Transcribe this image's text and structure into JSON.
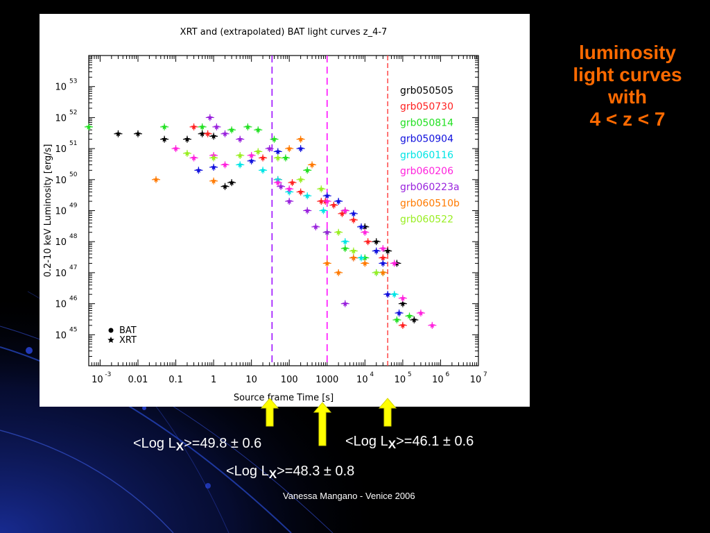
{
  "slide": {
    "side_title_lines": [
      "luminosity",
      "light curves",
      "with",
      "4 < z < 7"
    ],
    "notes": [
      {
        "prefix": "<Log L",
        "sub": "X",
        "suffix": ">=49.8 ± 0.6"
      },
      {
        "prefix": "<Log L",
        "sub": "X",
        "suffix": ">=48.3 ± 0.8"
      },
      {
        "prefix": "<Log L",
        "sub": "X",
        "suffix": ">=46.1 ± 0.6"
      }
    ],
    "footer": "Vanessa Mangano - Venice 2006",
    "colors": {
      "background": "#000000",
      "title": "#ff6a00",
      "arrow": "#ffff00"
    },
    "icons": [
      "up-arrow-icon",
      "up-arrow-icon",
      "up-arrow-icon"
    ]
  },
  "chart_data": {
    "type": "scatter",
    "title": "XRT and (extrapolated) BAT light curves z_4-7",
    "xlabel": "Source frame Time [s]",
    "ylabel": "0.2-10 keV Luminosity [erg/s]",
    "xscale": "log",
    "yscale": "log",
    "xlim": [
      0.0005,
      10000000
    ],
    "ylim": [
      1e+44,
      1e+54
    ],
    "x_ticks": [
      {
        "value": 0.001,
        "mant": "10",
        "exp": "-3"
      },
      {
        "value": 0.01,
        "mant": "0.01",
        "exp": ""
      },
      {
        "value": 0.1,
        "mant": "0.1",
        "exp": ""
      },
      {
        "value": 1,
        "mant": "1",
        "exp": ""
      },
      {
        "value": 10,
        "mant": "10",
        "exp": ""
      },
      {
        "value": 100,
        "mant": "100",
        "exp": ""
      },
      {
        "value": 1000,
        "mant": "1000",
        "exp": ""
      },
      {
        "value": 10000,
        "mant": "10",
        "exp": "4"
      },
      {
        "value": 100000,
        "mant": "10",
        "exp": "5"
      },
      {
        "value": 1000000,
        "mant": "10",
        "exp": "6"
      },
      {
        "value": 10000000,
        "mant": "10",
        "exp": "7"
      }
    ],
    "y_ticks": [
      {
        "value": 1e+45,
        "mant": "10",
        "exp": "45"
      },
      {
        "value": 1e+46,
        "mant": "10",
        "exp": "46"
      },
      {
        "value": 1e+47,
        "mant": "10",
        "exp": "47"
      },
      {
        "value": 1e+48,
        "mant": "10",
        "exp": "48"
      },
      {
        "value": 1e+49,
        "mant": "10",
        "exp": "49"
      },
      {
        "value": 1e+50,
        "mant": "10",
        "exp": "50"
      },
      {
        "value": 1e+51,
        "mant": "10",
        "exp": "51"
      },
      {
        "value": 1e+52,
        "mant": "10",
        "exp": "52"
      },
      {
        "value": 1e+53,
        "mant": "10",
        "exp": "53"
      }
    ],
    "vlines": [
      {
        "x": 35,
        "color": "#9900ff",
        "dash": "dashed"
      },
      {
        "x": 1000,
        "color": "#ff00ff",
        "dash": "dashed"
      },
      {
        "x": 40000,
        "color": "#ff4444",
        "dash": "dashed-fine"
      }
    ],
    "symbol_legend": [
      {
        "label": "BAT",
        "marker": "dot"
      },
      {
        "label": "XRT",
        "marker": "star"
      }
    ],
    "legend_position": "top-right",
    "series": [
      {
        "name": "grb050505",
        "color": "#000000",
        "points": [
          [
            0.003,
            3e+51
          ],
          [
            0.01,
            3e+51
          ],
          [
            0.05,
            2e+51
          ],
          [
            0.2,
            2e+51
          ],
          [
            0.5,
            3e+51
          ],
          [
            1,
            2.5e+51
          ],
          [
            2,
            6e+49
          ],
          [
            3,
            8e+49
          ],
          [
            3000,
            1e+49
          ],
          [
            10000,
            3e+48
          ],
          [
            20000,
            1e+48
          ],
          [
            40000,
            5e+47
          ],
          [
            70000,
            2e+47
          ],
          [
            100000,
            1e+46
          ],
          [
            200000,
            3e+45
          ]
        ]
      },
      {
        "name": "grb050730",
        "color": "#ff2020",
        "points": [
          [
            0.3,
            5e+51
          ],
          [
            0.7,
            3e+51
          ],
          [
            20,
            5e+50
          ],
          [
            50,
            1e+50
          ],
          [
            120,
            8e+49
          ],
          [
            200,
            4e+49
          ],
          [
            700,
            2e+49
          ],
          [
            900,
            2e+49
          ],
          [
            1500,
            1.5e+49
          ],
          [
            2500,
            8e+48
          ],
          [
            5000,
            5e+48
          ],
          [
            12000,
            1e+48
          ],
          [
            30000,
            3e+47
          ],
          [
            100000,
            2e+45
          ]
        ]
      },
      {
        "name": "grb050814",
        "color": "#22e022",
        "points": [
          [
            0.0005,
            5e+51
          ],
          [
            0.05,
            5e+51
          ],
          [
            0.5,
            5e+51
          ],
          [
            3,
            4e+51
          ],
          [
            8,
            5e+51
          ],
          [
            15,
            4e+51
          ],
          [
            40,
            2e+51
          ],
          [
            80,
            5e+50
          ],
          [
            300,
            2e+50
          ],
          [
            1000,
            2e+48
          ],
          [
            3000,
            6e+47
          ],
          [
            10000,
            3e+47
          ],
          [
            30000,
            1e+47
          ],
          [
            70000,
            3e+45
          ],
          [
            150000,
            4e+45
          ]
        ]
      },
      {
        "name": "grb050904",
        "color": "#1010dd",
        "points": [
          [
            0.4,
            2e+50
          ],
          [
            1,
            2.5e+50
          ],
          [
            10,
            4e+50
          ],
          [
            50,
            8e+50
          ],
          [
            200,
            1e+51
          ],
          [
            1000,
            3e+49
          ],
          [
            2000,
            2e+49
          ],
          [
            5000,
            8e+48
          ],
          [
            8000,
            3e+48
          ],
          [
            20000,
            5e+47
          ],
          [
            30000,
            2e+47
          ],
          [
            40000,
            2e+46
          ],
          [
            80000,
            5e+45
          ]
        ]
      },
      {
        "name": "grb060116",
        "color": "#00e5e5",
        "points": [
          [
            5,
            3e+50
          ],
          [
            20,
            2e+50
          ],
          [
            50,
            1e+50
          ],
          [
            100,
            4e+49
          ],
          [
            300,
            3e+49
          ],
          [
            800,
            1e+49
          ],
          [
            3000,
            1e+48
          ],
          [
            8000,
            3e+47
          ],
          [
            20000,
            1e+47
          ],
          [
            60000,
            2e+46
          ]
        ]
      },
      {
        "name": "grb060206",
        "color": "#ff22dd",
        "points": [
          [
            0.1,
            1e+51
          ],
          [
            0.3,
            5e+50
          ],
          [
            1,
            6e+50
          ],
          [
            2,
            3e+50
          ],
          [
            10,
            6e+50
          ],
          [
            50,
            8e+49
          ],
          [
            100,
            5e+49
          ],
          [
            1000,
            2e+49
          ],
          [
            3000,
            1e+49
          ],
          [
            10000,
            2e+48
          ],
          [
            30000,
            6e+47
          ],
          [
            60000,
            2e+47
          ],
          [
            100000,
            1.5e+46
          ],
          [
            300000,
            5e+45
          ],
          [
            600000,
            2e+45
          ]
        ]
      },
      {
        "name": "grb060223a",
        "color": "#9922dd",
        "points": [
          [
            0.8,
            1e+52
          ],
          [
            1.2,
            5e+51
          ],
          [
            2,
            3e+51
          ],
          [
            5,
            2e+51
          ],
          [
            30,
            1e+51
          ],
          [
            60,
            6e+49
          ],
          [
            100,
            2e+49
          ],
          [
            300,
            1e+49
          ],
          [
            500,
            3e+48
          ],
          [
            1000,
            2e+48
          ],
          [
            3000,
            1e+46
          ],
          [
            5000,
            3e+47
          ]
        ]
      },
      {
        "name": "grb060510b",
        "color": "#ff7a00",
        "points": [
          [
            0.03,
            1e+50
          ],
          [
            1,
            9e+49
          ],
          [
            100,
            1e+51
          ],
          [
            200,
            2e+51
          ],
          [
            400,
            3e+50
          ],
          [
            1000,
            2e+47
          ],
          [
            2000,
            1e+47
          ],
          [
            5000,
            3e+47
          ],
          [
            10000,
            2e+47
          ],
          [
            30000,
            1e+47
          ]
        ]
      },
      {
        "name": "grb060522",
        "color": "#99ee22",
        "points": [
          [
            0.2,
            7e+50
          ],
          [
            1,
            5e+50
          ],
          [
            5,
            6e+50
          ],
          [
            15,
            8e+50
          ],
          [
            50,
            5e+50
          ],
          [
            200,
            1e+50
          ],
          [
            700,
            5e+49
          ],
          [
            2000,
            2e+48
          ],
          [
            5000,
            5e+47
          ],
          [
            20000,
            1e+47
          ]
        ]
      }
    ]
  }
}
